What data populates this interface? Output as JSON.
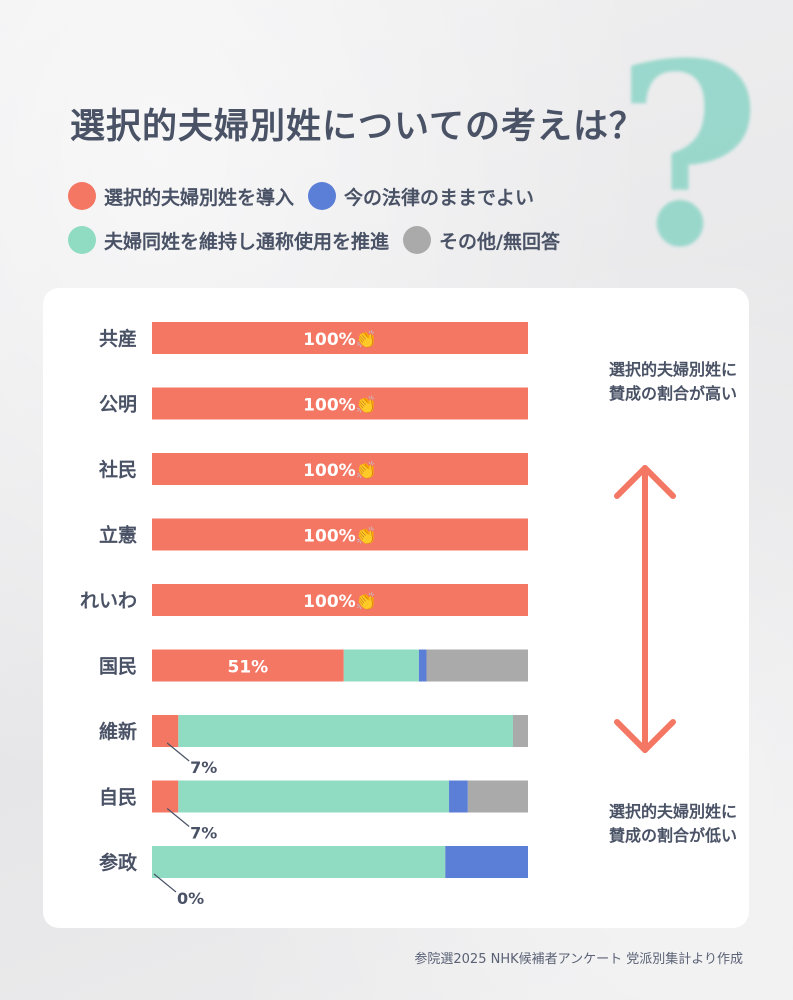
{
  "title": "選択的夫婦別姓についての考えは？",
  "legend": [
    {
      "label": "選択的夫婦別姓を導入",
      "color": "#f47764"
    },
    {
      "label": "今の法律のままでよい",
      "color": "#5b7ed6"
    },
    {
      "label": "夫婦同姓を維持し通称使用を推進",
      "color": "#8fdcc3"
    },
    {
      "label": "その他/無回答",
      "color": "#aaaaaa"
    }
  ],
  "notes": {
    "top": [
      "選択的夫婦別姓に",
      "賛成の割合が高い"
    ],
    "bottom": [
      "選択的夫婦別姓に",
      "賛成の割合が低い"
    ]
  },
  "footer": "参院選2025 NHK候補者アンケート 党派別集計より作成",
  "chart_data": {
    "type": "bar",
    "orientation": "horizontal",
    "stacked": true,
    "unit": "%",
    "xlim": [
      0,
      100
    ],
    "categories": [
      "共産",
      "公明",
      "社民",
      "立憲",
      "れいわ",
      "国民",
      "維新",
      "自民",
      "参政"
    ],
    "series": [
      {
        "name": "選択的夫婦別姓を導入",
        "color": "#f47764",
        "values": [
          100,
          100,
          100,
          100,
          100,
          51,
          7,
          7,
          0
        ]
      },
      {
        "name": "夫婦同姓を維持し通称使用を推進",
        "color": "#8fdcc3",
        "values": [
          0,
          0,
          0,
          0,
          0,
          20,
          89,
          72,
          78
        ]
      },
      {
        "name": "今の法律のままでよい",
        "color": "#5b7ed6",
        "values": [
          0,
          0,
          0,
          0,
          0,
          2,
          0,
          5,
          22
        ]
      },
      {
        "name": "その他/無回答",
        "color": "#aaaaaa",
        "values": [
          0,
          0,
          0,
          0,
          0,
          27,
          4,
          16,
          0
        ]
      }
    ],
    "data_labels": [
      "100%👏",
      "100%👏",
      "100%👏",
      "100%👏",
      "100%👏",
      "51%",
      "7%",
      "7%",
      "0%"
    ]
  }
}
